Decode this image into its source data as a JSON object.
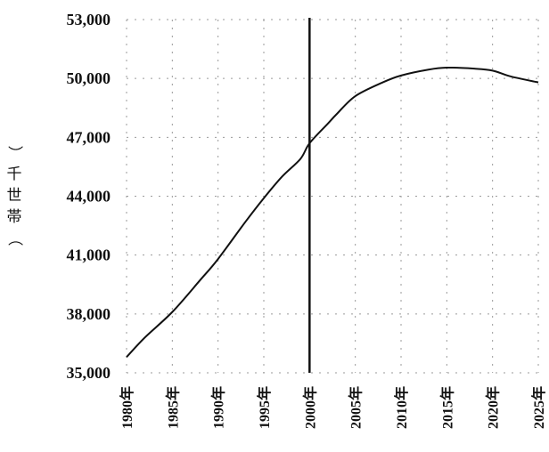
{
  "chart_data": {
    "type": "line",
    "x": [
      "1980年",
      "1985年",
      "1990年",
      "1995年",
      "2000年",
      "2005年",
      "2010年",
      "2015年",
      "2020年",
      "2025年"
    ],
    "x_years": [
      1980,
      1985,
      1990,
      1995,
      2000,
      2005,
      2010,
      2015,
      2020,
      2025
    ],
    "series": [
      {
        "points": [
          [
            1980,
            35800
          ],
          [
            1982,
            36800
          ],
          [
            1985,
            38100
          ],
          [
            1988,
            39700
          ],
          [
            1990,
            40800
          ],
          [
            1993,
            42700
          ],
          [
            1995,
            43900
          ],
          [
            1997,
            45000
          ],
          [
            1999,
            45900
          ],
          [
            2000,
            46700
          ],
          [
            2002,
            47700
          ],
          [
            2003,
            48200
          ],
          [
            2005,
            49100
          ],
          [
            2008,
            49800
          ],
          [
            2010,
            50150
          ],
          [
            2013,
            50450
          ],
          [
            2015,
            50550
          ],
          [
            2018,
            50500
          ],
          [
            2020,
            50400
          ],
          [
            2022,
            50100
          ],
          [
            2025,
            49800
          ]
        ]
      }
    ],
    "y_ticks": [
      "53,000",
      "50,000",
      "47,000",
      "44,000",
      "41,000",
      "38,000",
      "35,000"
    ],
    "y_tick_values": [
      53000,
      50000,
      47000,
      44000,
      41000,
      38000,
      35000
    ],
    "ylim": [
      35000,
      53000
    ],
    "xlim": [
      1980,
      2025
    ],
    "ylabel": "（千世帯）",
    "ylabel_chars": [
      "）",
      "千",
      "世",
      "帯",
      "（"
    ],
    "marker_x": 2000,
    "grid": true,
    "legend": "none"
  }
}
